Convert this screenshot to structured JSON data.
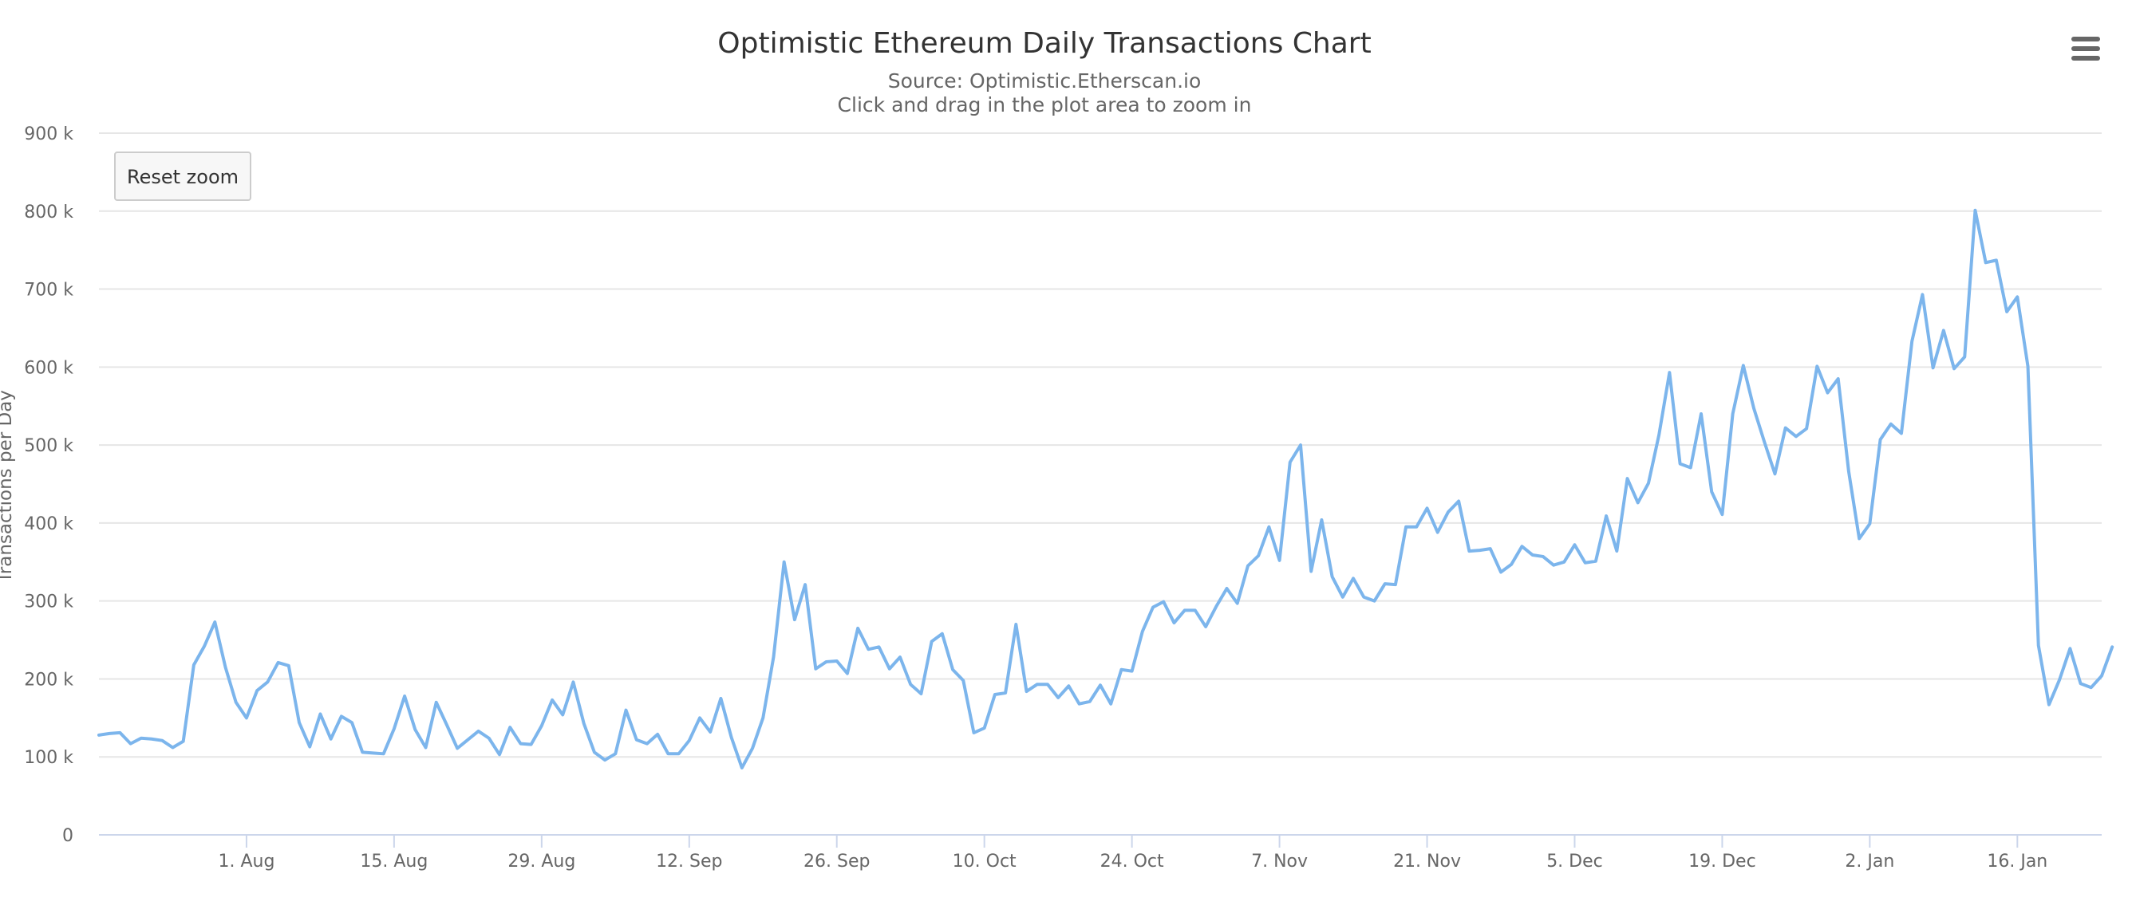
{
  "chart_data": {
    "type": "line",
    "title": "Optimistic Ethereum Daily Transactions Chart",
    "subtitle_lines": [
      "Source: Optimistic.Etherscan.io",
      "Click and drag in the plot area to zoom in"
    ],
    "xlabel": "",
    "ylabel": "Transactions per Day",
    "ylim": [
      0,
      900000
    ],
    "yticks": [
      0,
      100000,
      200000,
      300000,
      400000,
      500000,
      600000,
      700000,
      800000,
      900000
    ],
    "ytick_labels": [
      "0",
      "100 k",
      "200 k",
      "300 k",
      "400 k",
      "500 k",
      "600 k",
      "700 k",
      "800 k",
      "900 k"
    ],
    "x_start_date": "2021-07-18",
    "x_end_date": "2022-01-24",
    "xticks": [
      {
        "date": "2021-08-01",
        "label": "1. Aug"
      },
      {
        "date": "2021-08-15",
        "label": "15. Aug"
      },
      {
        "date": "2021-08-29",
        "label": "29. Aug"
      },
      {
        "date": "2021-09-12",
        "label": "12. Sep"
      },
      {
        "date": "2021-09-26",
        "label": "26. Sep"
      },
      {
        "date": "2021-10-10",
        "label": "10. Oct"
      },
      {
        "date": "2021-10-24",
        "label": "24. Oct"
      },
      {
        "date": "2021-11-07",
        "label": "7. Nov"
      },
      {
        "date": "2021-11-21",
        "label": "21. Nov"
      },
      {
        "date": "2021-12-05",
        "label": "5. Dec"
      },
      {
        "date": "2021-12-19",
        "label": "19. Dec"
      },
      {
        "date": "2022-01-02",
        "label": "2. Jan"
      },
      {
        "date": "2022-01-16",
        "label": "16. Jan"
      }
    ],
    "grid": true,
    "legend": "none",
    "series": [
      {
        "color": "#7cb5ec",
        "values": [
          128000,
          130000,
          131000,
          117000,
          124000,
          123000,
          121000,
          112000,
          120000,
          218000,
          242000,
          273000,
          215000,
          170000,
          150000,
          185000,
          196000,
          221000,
          217000,
          144000,
          113000,
          155000,
          123000,
          152000,
          144000,
          106000,
          105000,
          104000,
          136000,
          178000,
          135000,
          112000,
          170000,
          141000,
          111000,
          122000,
          133000,
          124000,
          103000,
          138000,
          117000,
          116000,
          140000,
          173000,
          154000,
          196000,
          143000,
          106000,
          96000,
          104000,
          160000,
          122000,
          117000,
          129000,
          104000,
          104000,
          121000,
          150000,
          132000,
          175000,
          125000,
          86000,
          111000,
          150000,
          228000,
          350000,
          276000,
          321000,
          213000,
          222000,
          223000,
          207000,
          265000,
          238000,
          241000,
          213000,
          228000,
          193000,
          181000,
          248000,
          258000,
          212000,
          198000,
          131000,
          137000,
          180000,
          182000,
          270000,
          184000,
          193000,
          193000,
          176000,
          191000,
          168000,
          171000,
          192000,
          168000,
          212000,
          210000,
          261000,
          292000,
          299000,
          272000,
          288000,
          288000,
          267000,
          293000,
          316000,
          297000,
          345000,
          358000,
          395000,
          352000,
          478000,
          500000,
          338000,
          404000,
          331000,
          305000,
          329000,
          305000,
          300000,
          322000,
          321000,
          395000,
          395000,
          419000,
          388000,
          414000,
          428000,
          364000,
          365000,
          367000,
          337000,
          347000,
          370000,
          359000,
          357000,
          346000,
          350000,
          372000,
          349000,
          351000,
          409000,
          364000,
          457000,
          426000,
          451000,
          513000,
          593000,
          476000,
          471000,
          540000,
          440000,
          411000,
          540000,
          602000,
          547000,
          504000,
          463000,
          522000,
          511000,
          521000,
          601000,
          567000,
          585000,
          466000,
          380000,
          399000,
          507000,
          527000,
          515000,
          633000,
          693000,
          599000,
          647000,
          598000,
          613000,
          801000,
          734000,
          737000,
          671000,
          690000,
          601000,
          243000,
          167000,
          199000,
          239000,
          194000,
          189000,
          204000,
          241000
        ]
      }
    ]
  },
  "reset_zoom_label": "Reset zoom",
  "menu_icon": "hamburger-menu-icon"
}
